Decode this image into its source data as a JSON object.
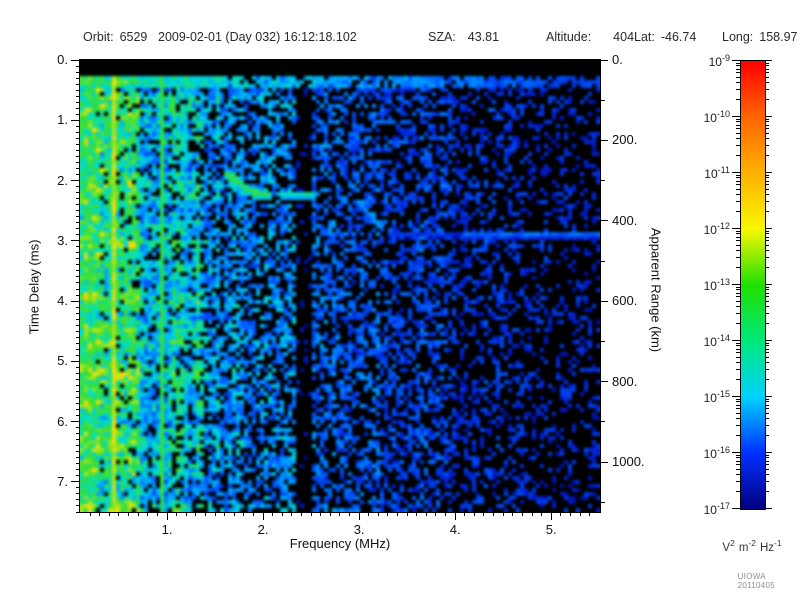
{
  "header": {
    "fields": [
      {
        "label": "Orbit:",
        "value": "6529"
      },
      {
        "label": "",
        "value": "2009-02-01 (Day 032) 16:12:18.102"
      },
      {
        "label": "SZA:",
        "value": "43.81"
      },
      {
        "label": "Altitude:",
        "value": "404"
      },
      {
        "label": "Lat:",
        "value": "-46.74"
      },
      {
        "label": "Long:",
        "value": "158.97"
      }
    ]
  },
  "axes": {
    "x": {
      "label": "Frequency (MHz)",
      "major_ticks": [
        1,
        2,
        3,
        4,
        5
      ],
      "major_labels": [
        "1.",
        "2.",
        "3.",
        "4.",
        "5."
      ],
      "range": [
        0.094,
        5.51
      ],
      "minor_step": 0.1
    },
    "y_left": {
      "label": "Time Delay (ms)",
      "major_ticks": [
        0,
        1,
        2,
        3,
        4,
        5,
        6,
        7
      ],
      "major_labels": [
        "0.",
        "1.",
        "2.",
        "3.",
        "4.",
        "5.",
        "6.",
        "7."
      ],
      "range": [
        0,
        7.5
      ],
      "minor_step": 0.1
    },
    "y_right": {
      "label": "Apparent Range (km)",
      "major_ticks": [
        0,
        200,
        400,
        600,
        800,
        1000
      ],
      "major_labels": [
        "0.",
        "200.",
        "400.",
        "600.",
        "800.",
        "1000."
      ],
      "range": [
        0,
        1124
      ],
      "minor_step": 100
    }
  },
  "colorbar": {
    "scale": "log",
    "tick_exponents": [
      -9,
      -10,
      -11,
      -12,
      -13,
      -14,
      -15,
      -16,
      -17
    ],
    "unit_parts": [
      {
        "base": "V",
        "exp": "2"
      },
      {
        "base": "m",
        "exp": "-2"
      },
      {
        "base": "Hz",
        "exp": "-1"
      }
    ],
    "colors_top_to_bottom": [
      "#ff0000",
      "#ff6400",
      "#ffb000",
      "#f8f800",
      "#20e000",
      "#00e87c",
      "#00d2ff",
      "#0030ff",
      "#000080"
    ]
  },
  "watermark": "UIOWA 20110405",
  "chart_data": {
    "type": "heatmap",
    "title": "Radar sounder ionogram spectrogram",
    "xlabel": "Frequency (MHz)",
    "ylabel": "Time Delay (ms)",
    "y2label": "Apparent Range (km)",
    "zlabel": "V^2 m^-2 Hz^-1",
    "xlim": [
      0.094,
      5.51
    ],
    "ylim": [
      0,
      7.54
    ],
    "y2lim": [
      0,
      1130
    ],
    "zlim": [
      1e-17,
      1e-09
    ],
    "zscale": "log",
    "x_ticks": [
      1,
      2,
      3,
      4,
      5
    ],
    "y_ticks_ms": [
      0,
      1,
      2,
      3,
      4,
      5,
      6,
      7
    ],
    "y2_ticks_km": [
      0,
      200,
      400,
      600,
      800,
      1000
    ],
    "background": "black (below 1e-17)",
    "features": [
      {
        "name": "direct-signal-band",
        "freq_mhz": [
          0.1,
          5.5
        ],
        "delay_ms": [
          0.3,
          0.45
        ],
        "appearance": "continuous horizontal band, green-cyan at low frequency fading to dashed dark blue at high frequency"
      },
      {
        "name": "broadband-low-frequency-noise",
        "freq_mhz": [
          0.1,
          1.4
        ],
        "delay_ms": [
          0.25,
          7.54
        ],
        "appearance": "dense green noise (~1e-13) with yellow bursts (~1e-12) and strong vertical striping"
      },
      {
        "name": "narrowband-emission-line",
        "freq_mhz": [
          0.44,
          0.44
        ],
        "delay_ms": [
          0.3,
          7.54
        ],
        "appearance": "bright yellow-green vertical line"
      },
      {
        "name": "narrowband-emission-line",
        "freq_mhz": [
          0.93,
          0.93
        ],
        "delay_ms": [
          0.3,
          7.54
        ],
        "appearance": "green vertical line"
      },
      {
        "name": "ionosphere-echo-trace",
        "freq_mhz": [
          1.6,
          2.45
        ],
        "delay_ms": [
          1.85,
          2.3
        ],
        "appearance": "bright green-cyan arc curving down then flattening"
      },
      {
        "name": "echo-segment",
        "freq_mhz": [
          3.0,
          3.35
        ],
        "delay_ms": [
          2.3,
          2.75
        ],
        "appearance": "faint cyan diagonal dash"
      },
      {
        "name": "quiet-column",
        "freq_mhz": [
          2.33,
          2.52
        ],
        "delay_ms": [
          0.25,
          7.54
        ],
        "appearance": "black vertical gap in noise"
      },
      {
        "name": "interference-line",
        "freq_mhz": [
          3.9,
          5.5
        ],
        "delay_ms": [
          2.85,
          2.95
        ],
        "appearance": "faint horizontal blue line"
      },
      {
        "name": "blue-speckle-background",
        "freq_mhz": [
          1.4,
          5.5
        ],
        "delay_ms": [
          0.25,
          7.54
        ],
        "appearance": "sparse dark-blue speckle (~1e-16), density decreasing toward higher frequency"
      }
    ]
  }
}
